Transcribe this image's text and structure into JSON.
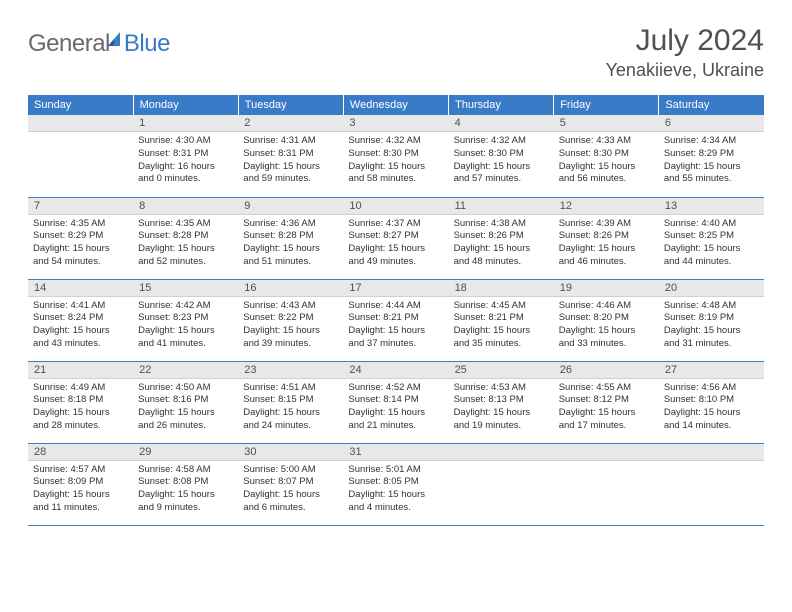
{
  "logo": {
    "text1": "General",
    "text2": "Blue"
  },
  "title": "July 2024",
  "location": "Yenakiieve, Ukraine",
  "colors": {
    "header_bg": "#3a7bc8",
    "daynum_bg": "#e8e8e8",
    "border": "#3a7bc8",
    "text": "#323232",
    "title_text": "#505050"
  },
  "weekdays": [
    "Sunday",
    "Monday",
    "Tuesday",
    "Wednesday",
    "Thursday",
    "Friday",
    "Saturday"
  ],
  "grid": [
    [
      {
        "num": "",
        "sunrise": "",
        "sunset": "",
        "daylight1": "",
        "daylight2": ""
      },
      {
        "num": "1",
        "sunrise": "Sunrise: 4:30 AM",
        "sunset": "Sunset: 8:31 PM",
        "daylight1": "Daylight: 16 hours",
        "daylight2": "and 0 minutes."
      },
      {
        "num": "2",
        "sunrise": "Sunrise: 4:31 AM",
        "sunset": "Sunset: 8:31 PM",
        "daylight1": "Daylight: 15 hours",
        "daylight2": "and 59 minutes."
      },
      {
        "num": "3",
        "sunrise": "Sunrise: 4:32 AM",
        "sunset": "Sunset: 8:30 PM",
        "daylight1": "Daylight: 15 hours",
        "daylight2": "and 58 minutes."
      },
      {
        "num": "4",
        "sunrise": "Sunrise: 4:32 AM",
        "sunset": "Sunset: 8:30 PM",
        "daylight1": "Daylight: 15 hours",
        "daylight2": "and 57 minutes."
      },
      {
        "num": "5",
        "sunrise": "Sunrise: 4:33 AM",
        "sunset": "Sunset: 8:30 PM",
        "daylight1": "Daylight: 15 hours",
        "daylight2": "and 56 minutes."
      },
      {
        "num": "6",
        "sunrise": "Sunrise: 4:34 AM",
        "sunset": "Sunset: 8:29 PM",
        "daylight1": "Daylight: 15 hours",
        "daylight2": "and 55 minutes."
      }
    ],
    [
      {
        "num": "7",
        "sunrise": "Sunrise: 4:35 AM",
        "sunset": "Sunset: 8:29 PM",
        "daylight1": "Daylight: 15 hours",
        "daylight2": "and 54 minutes."
      },
      {
        "num": "8",
        "sunrise": "Sunrise: 4:35 AM",
        "sunset": "Sunset: 8:28 PM",
        "daylight1": "Daylight: 15 hours",
        "daylight2": "and 52 minutes."
      },
      {
        "num": "9",
        "sunrise": "Sunrise: 4:36 AM",
        "sunset": "Sunset: 8:28 PM",
        "daylight1": "Daylight: 15 hours",
        "daylight2": "and 51 minutes."
      },
      {
        "num": "10",
        "sunrise": "Sunrise: 4:37 AM",
        "sunset": "Sunset: 8:27 PM",
        "daylight1": "Daylight: 15 hours",
        "daylight2": "and 49 minutes."
      },
      {
        "num": "11",
        "sunrise": "Sunrise: 4:38 AM",
        "sunset": "Sunset: 8:26 PM",
        "daylight1": "Daylight: 15 hours",
        "daylight2": "and 48 minutes."
      },
      {
        "num": "12",
        "sunrise": "Sunrise: 4:39 AM",
        "sunset": "Sunset: 8:26 PM",
        "daylight1": "Daylight: 15 hours",
        "daylight2": "and 46 minutes."
      },
      {
        "num": "13",
        "sunrise": "Sunrise: 4:40 AM",
        "sunset": "Sunset: 8:25 PM",
        "daylight1": "Daylight: 15 hours",
        "daylight2": "and 44 minutes."
      }
    ],
    [
      {
        "num": "14",
        "sunrise": "Sunrise: 4:41 AM",
        "sunset": "Sunset: 8:24 PM",
        "daylight1": "Daylight: 15 hours",
        "daylight2": "and 43 minutes."
      },
      {
        "num": "15",
        "sunrise": "Sunrise: 4:42 AM",
        "sunset": "Sunset: 8:23 PM",
        "daylight1": "Daylight: 15 hours",
        "daylight2": "and 41 minutes."
      },
      {
        "num": "16",
        "sunrise": "Sunrise: 4:43 AM",
        "sunset": "Sunset: 8:22 PM",
        "daylight1": "Daylight: 15 hours",
        "daylight2": "and 39 minutes."
      },
      {
        "num": "17",
        "sunrise": "Sunrise: 4:44 AM",
        "sunset": "Sunset: 8:21 PM",
        "daylight1": "Daylight: 15 hours",
        "daylight2": "and 37 minutes."
      },
      {
        "num": "18",
        "sunrise": "Sunrise: 4:45 AM",
        "sunset": "Sunset: 8:21 PM",
        "daylight1": "Daylight: 15 hours",
        "daylight2": "and 35 minutes."
      },
      {
        "num": "19",
        "sunrise": "Sunrise: 4:46 AM",
        "sunset": "Sunset: 8:20 PM",
        "daylight1": "Daylight: 15 hours",
        "daylight2": "and 33 minutes."
      },
      {
        "num": "20",
        "sunrise": "Sunrise: 4:48 AM",
        "sunset": "Sunset: 8:19 PM",
        "daylight1": "Daylight: 15 hours",
        "daylight2": "and 31 minutes."
      }
    ],
    [
      {
        "num": "21",
        "sunrise": "Sunrise: 4:49 AM",
        "sunset": "Sunset: 8:18 PM",
        "daylight1": "Daylight: 15 hours",
        "daylight2": "and 28 minutes."
      },
      {
        "num": "22",
        "sunrise": "Sunrise: 4:50 AM",
        "sunset": "Sunset: 8:16 PM",
        "daylight1": "Daylight: 15 hours",
        "daylight2": "and 26 minutes."
      },
      {
        "num": "23",
        "sunrise": "Sunrise: 4:51 AM",
        "sunset": "Sunset: 8:15 PM",
        "daylight1": "Daylight: 15 hours",
        "daylight2": "and 24 minutes."
      },
      {
        "num": "24",
        "sunrise": "Sunrise: 4:52 AM",
        "sunset": "Sunset: 8:14 PM",
        "daylight1": "Daylight: 15 hours",
        "daylight2": "and 21 minutes."
      },
      {
        "num": "25",
        "sunrise": "Sunrise: 4:53 AM",
        "sunset": "Sunset: 8:13 PM",
        "daylight1": "Daylight: 15 hours",
        "daylight2": "and 19 minutes."
      },
      {
        "num": "26",
        "sunrise": "Sunrise: 4:55 AM",
        "sunset": "Sunset: 8:12 PM",
        "daylight1": "Daylight: 15 hours",
        "daylight2": "and 17 minutes."
      },
      {
        "num": "27",
        "sunrise": "Sunrise: 4:56 AM",
        "sunset": "Sunset: 8:10 PM",
        "daylight1": "Daylight: 15 hours",
        "daylight2": "and 14 minutes."
      }
    ],
    [
      {
        "num": "28",
        "sunrise": "Sunrise: 4:57 AM",
        "sunset": "Sunset: 8:09 PM",
        "daylight1": "Daylight: 15 hours",
        "daylight2": "and 11 minutes."
      },
      {
        "num": "29",
        "sunrise": "Sunrise: 4:58 AM",
        "sunset": "Sunset: 8:08 PM",
        "daylight1": "Daylight: 15 hours",
        "daylight2": "and 9 minutes."
      },
      {
        "num": "30",
        "sunrise": "Sunrise: 5:00 AM",
        "sunset": "Sunset: 8:07 PM",
        "daylight1": "Daylight: 15 hours",
        "daylight2": "and 6 minutes."
      },
      {
        "num": "31",
        "sunrise": "Sunrise: 5:01 AM",
        "sunset": "Sunset: 8:05 PM",
        "daylight1": "Daylight: 15 hours",
        "daylight2": "and 4 minutes."
      },
      {
        "num": "",
        "sunrise": "",
        "sunset": "",
        "daylight1": "",
        "daylight2": ""
      },
      {
        "num": "",
        "sunrise": "",
        "sunset": "",
        "daylight1": "",
        "daylight2": ""
      },
      {
        "num": "",
        "sunrise": "",
        "sunset": "",
        "daylight1": "",
        "daylight2": ""
      }
    ]
  ]
}
